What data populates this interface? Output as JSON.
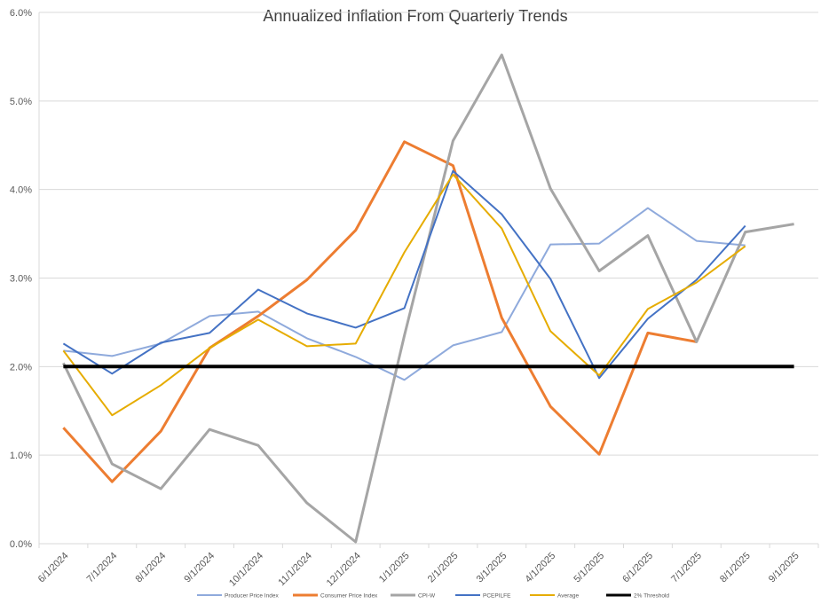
{
  "chart_data": {
    "type": "line",
    "title": "Annualized Inflation From Quarterly Trends",
    "xlabel": "",
    "ylabel": "",
    "ylim": [
      0,
      6
    ],
    "yticks": [
      "0.0%",
      "1.0%",
      "2.0%",
      "3.0%",
      "4.0%",
      "5.0%",
      "6.0%"
    ],
    "grid": true,
    "legend": "bottom",
    "categories": [
      "6/1/2024",
      "7/1/2024",
      "8/1/2024",
      "9/1/2024",
      "10/1/2024",
      "11/1/2024",
      "12/1/2024",
      "1/1/2025",
      "2/1/2025",
      "3/1/2025",
      "4/1/2025",
      "5/1/2025",
      "6/1/2025",
      "7/1/2025",
      "8/1/2025",
      "9/1/2025"
    ],
    "series": [
      {
        "name": "Producer Price Index",
        "color": "#8FAADC",
        "width": 2,
        "values": [
          2.18,
          2.12,
          2.26,
          2.57,
          2.62,
          2.32,
          2.11,
          1.85,
          2.24,
          2.39,
          3.38,
          3.39,
          3.79,
          3.42,
          3.37,
          null
        ]
      },
      {
        "name": "Consumer Price Index",
        "color": "#ED7D31",
        "width": 3,
        "values": [
          1.31,
          0.7,
          1.27,
          2.21,
          2.57,
          2.98,
          3.54,
          4.54,
          4.27,
          2.55,
          1.55,
          1.01,
          2.38,
          2.28,
          null,
          null
        ]
      },
      {
        "name": "CPI-W",
        "color": "#A5A5A5",
        "width": 3,
        "values": [
          2.04,
          0.9,
          0.62,
          1.29,
          1.11,
          0.46,
          0.02,
          2.35,
          4.55,
          5.52,
          4.01,
          3.08,
          3.48,
          2.28,
          3.52,
          3.61
        ]
      },
      {
        "name": "PCEPILFE",
        "color": "#4472C4",
        "width": 2,
        "values": [
          2.26,
          1.92,
          2.27,
          2.38,
          2.87,
          2.6,
          2.44,
          2.66,
          4.21,
          3.72,
          2.99,
          1.87,
          2.54,
          2.98,
          3.59,
          null
        ]
      },
      {
        "name": "Average",
        "color": "#E6AC00",
        "width": 2,
        "values": [
          2.18,
          1.45,
          1.79,
          2.21,
          2.53,
          2.23,
          2.26,
          3.29,
          4.17,
          3.56,
          2.4,
          1.9,
          2.65,
          2.95,
          3.36,
          null
        ]
      },
      {
        "name": "2% Threshold",
        "color": "#000000",
        "width": 4,
        "values": [
          2,
          2,
          2,
          2,
          2,
          2,
          2,
          2,
          2,
          2,
          2,
          2,
          2,
          2,
          2,
          2
        ]
      }
    ]
  }
}
